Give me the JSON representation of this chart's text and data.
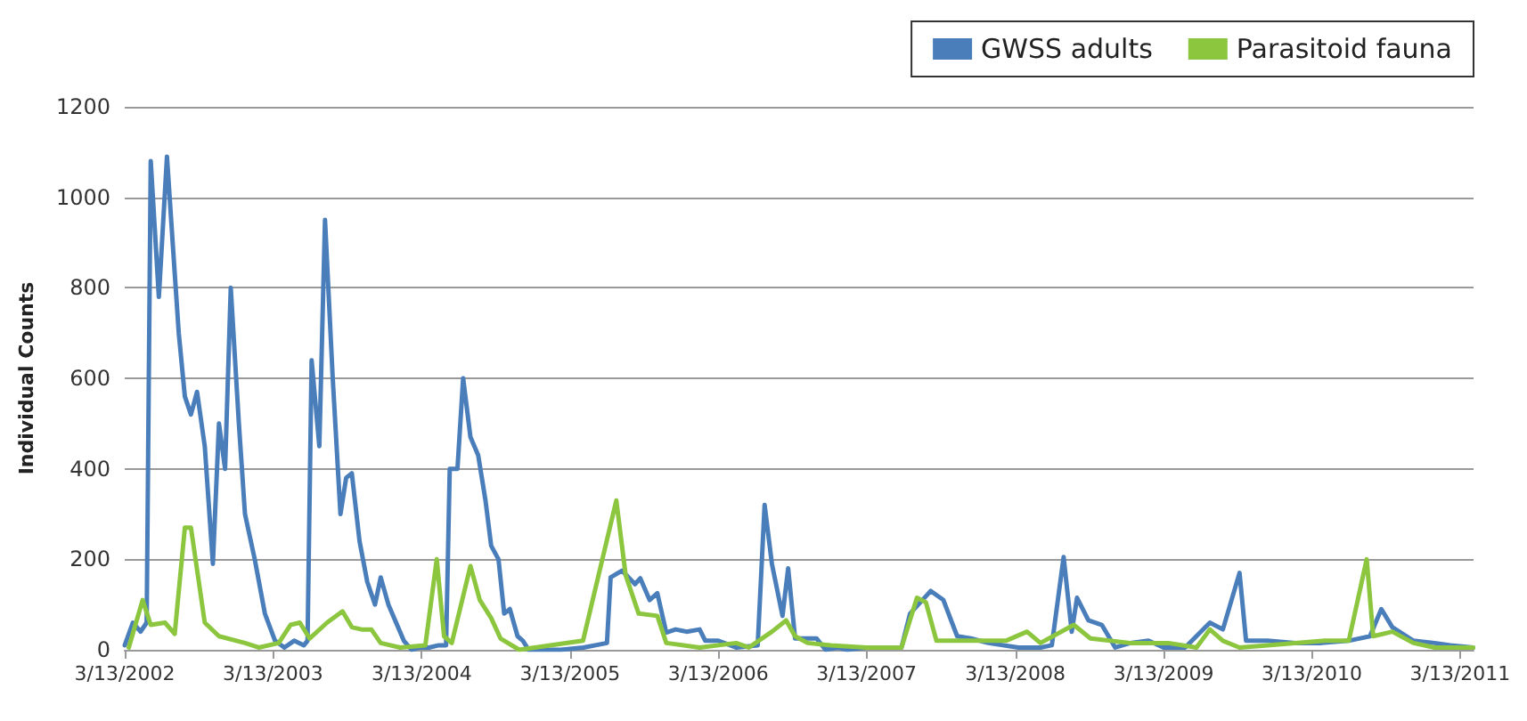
{
  "chart_data": {
    "type": "line",
    "ylabel": "Individual Counts",
    "legend": "top right",
    "grid": "y",
    "marker": "none",
    "line_style": "solid",
    "xlim": [
      "2002-03-13",
      "2011-04-15"
    ],
    "ylim": [
      0,
      1200
    ],
    "yticks": [
      0,
      200,
      400,
      600,
      800,
      1000,
      1200
    ],
    "xticks": [
      {
        "value": "2002-03-13",
        "label": "3/13/2002"
      },
      {
        "value": "2003-03-13",
        "label": "3/13/2003"
      },
      {
        "value": "2004-03-13",
        "label": "3/13/2004"
      },
      {
        "value": "2005-03-13",
        "label": "3/13/2005"
      },
      {
        "value": "2006-03-13",
        "label": "3/13/2006"
      },
      {
        "value": "2007-03-13",
        "label": "3/13/2007"
      },
      {
        "value": "2008-03-13",
        "label": "3/13/2008"
      },
      {
        "value": "2009-03-13",
        "label": "3/13/2009"
      },
      {
        "value": "2010-03-13",
        "label": "3/13/2010"
      },
      {
        "value": "2011-03-13",
        "label": "3/13/2011"
      }
    ],
    "series": [
      {
        "name": "GWSS adults",
        "color": "#4a7ebb",
        "x": [
          "2002-03-13",
          "2002-04-02",
          "2002-04-21",
          "2002-05-06",
          "2002-05-16",
          "2002-06-05",
          "2002-06-25",
          "2002-07-09",
          "2002-07-24",
          "2002-08-08",
          "2002-08-23",
          "2002-09-07",
          "2002-09-26",
          "2002-10-16",
          "2002-10-31",
          "2002-11-15",
          "2002-11-29",
          "2002-12-19",
          "2003-01-03",
          "2003-01-27",
          "2003-02-21",
          "2003-03-18",
          "2003-04-10",
          "2003-05-04",
          "2003-05-28",
          "2003-06-06",
          "2003-06-16",
          "2003-07-05",
          "2003-07-19",
          "2003-08-07",
          "2003-08-26",
          "2003-09-09",
          "2003-09-23",
          "2003-10-12",
          "2003-10-31",
          "2003-11-19",
          "2003-12-03",
          "2003-12-22",
          "2004-01-10",
          "2004-01-29",
          "2004-02-17",
          "2004-03-08",
          "2004-03-31",
          "2004-04-24",
          "2004-05-12",
          "2004-05-21",
          "2004-06-09",
          "2004-06-23",
          "2004-07-11",
          "2004-07-30",
          "2004-08-17",
          "2004-08-31",
          "2004-09-18",
          "2004-10-02",
          "2004-10-16",
          "2004-11-04",
          "2004-11-17",
          "2004-12-01",
          "2005-01-03",
          "2005-02-18",
          "2005-04-15",
          "2005-06-12",
          "2005-06-21",
          "2005-07-19",
          "2005-08-20",
          "2005-09-02",
          "2005-09-25",
          "2005-10-14",
          "2005-11-05",
          "2005-11-28",
          "2005-12-25",
          "2006-01-26",
          "2006-02-09",
          "2006-03-13",
          "2006-04-26",
          "2006-06-18",
          "2006-07-05",
          "2006-07-23",
          "2006-08-18",
          "2006-09-01",
          "2006-09-18",
          "2006-10-10",
          "2006-11-10",
          "2006-12-02",
          "2007-01-02",
          "2007-01-24",
          "2007-03-13",
          "2007-06-07",
          "2007-06-28",
          "2007-08-18",
          "2007-09-18",
          "2007-10-22",
          "2007-11-25",
          "2008-01-07",
          "2008-03-21",
          "2008-05-14",
          "2008-06-11",
          "2008-07-10",
          "2008-07-30",
          "2008-08-12",
          "2008-09-09",
          "2008-10-12",
          "2008-11-14",
          "2008-12-21",
          "2009-02-04",
          "2009-03-13",
          "2009-05-05",
          "2009-07-05",
          "2009-08-06",
          "2009-09-16",
          "2009-10-02",
          "2009-11-24",
          "2010-02-01",
          "2010-04-06",
          "2010-06-12",
          "2010-08-03",
          "2010-08-31",
          "2010-09-27",
          "2010-11-18",
          "2011-01-09",
          "2011-02-17",
          "2011-04-14"
        ],
        "values": [
          10,
          60,
          40,
          60,
          1080,
          780,
          1090,
          900,
          700,
          560,
          520,
          570,
          450,
          190,
          500,
          400,
          800,
          500,
          300,
          200,
          80,
          20,
          5,
          20,
          10,
          20,
          640,
          450,
          950,
          600,
          300,
          380,
          390,
          240,
          150,
          100,
          160,
          100,
          60,
          20,
          0,
          5,
          5,
          10,
          10,
          400,
          400,
          600,
          470,
          430,
          330,
          230,
          200,
          80,
          90,
          30,
          20,
          0,
          0,
          0,
          5,
          15,
          160,
          175,
          145,
          158,
          110,
          125,
          38,
          45,
          40,
          45,
          20,
          20,
          5,
          10,
          320,
          190,
          75,
          180,
          25,
          25,
          25,
          0,
          5,
          0,
          5,
          5,
          80,
          130,
          110,
          30,
          25,
          15,
          5,
          5,
          10,
          205,
          40,
          115,
          65,
          55,
          5,
          15,
          20,
          5,
          5,
          60,
          45,
          170,
          20,
          20,
          15,
          15,
          20,
          30,
          90,
          50,
          20,
          15,
          10,
          5
        ]
      },
      {
        "name": "Parasitoid fauna",
        "color": "#8cc63f",
        "x": [
          "2002-03-23",
          "2002-04-26",
          "2002-05-16",
          "2002-06-20",
          "2002-07-14",
          "2002-08-08",
          "2002-08-23",
          "2002-09-26",
          "2002-10-31",
          "2003-01-03",
          "2003-02-06",
          "2003-03-27",
          "2003-04-25",
          "2003-05-18",
          "2003-06-11",
          "2003-07-24",
          "2003-08-31",
          "2003-09-23",
          "2003-10-17",
          "2003-11-10",
          "2003-12-03",
          "2004-01-20",
          "2004-03-22",
          "2004-04-19",
          "2004-05-07",
          "2004-05-26",
          "2004-07-11",
          "2004-08-03",
          "2004-08-31",
          "2004-09-23",
          "2004-11-08",
          "2005-04-14",
          "2005-07-05",
          "2005-07-28",
          "2005-08-29",
          "2005-10-14",
          "2005-11-05",
          "2006-01-26",
          "2006-04-26",
          "2006-05-27",
          "2006-07-23",
          "2006-08-27",
          "2006-09-18",
          "2006-10-19",
          "2006-12-15",
          "2007-03-13",
          "2007-06-07",
          "2007-07-15",
          "2007-08-06",
          "2007-09-01",
          "2007-11-25",
          "2008-02-19",
          "2008-04-11",
          "2008-05-14",
          "2008-08-04",
          "2008-09-14",
          "2008-12-21",
          "2009-03-25",
          "2009-06-02",
          "2009-07-05",
          "2009-08-06",
          "2009-09-16",
          "2009-11-24",
          "2010-04-14",
          "2010-06-12",
          "2010-07-26",
          "2010-08-11",
          "2010-09-27",
          "2010-11-18",
          "2011-01-09",
          "2011-04-14"
        ],
        "values": [
          5,
          110,
          55,
          60,
          35,
          270,
          270,
          60,
          30,
          15,
          5,
          15,
          55,
          60,
          25,
          60,
          85,
          50,
          45,
          45,
          15,
          5,
          10,
          200,
          30,
          15,
          185,
          110,
          70,
          25,
          0,
          20,
          330,
          165,
          80,
          75,
          15,
          5,
          15,
          5,
          40,
          65,
          30,
          15,
          10,
          5,
          5,
          115,
          105,
          20,
          20,
          20,
          40,
          15,
          55,
          25,
          15,
          15,
          5,
          45,
          20,
          5,
          10,
          20,
          20,
          200,
          30,
          40,
          15,
          5,
          5
        ]
      }
    ]
  }
}
